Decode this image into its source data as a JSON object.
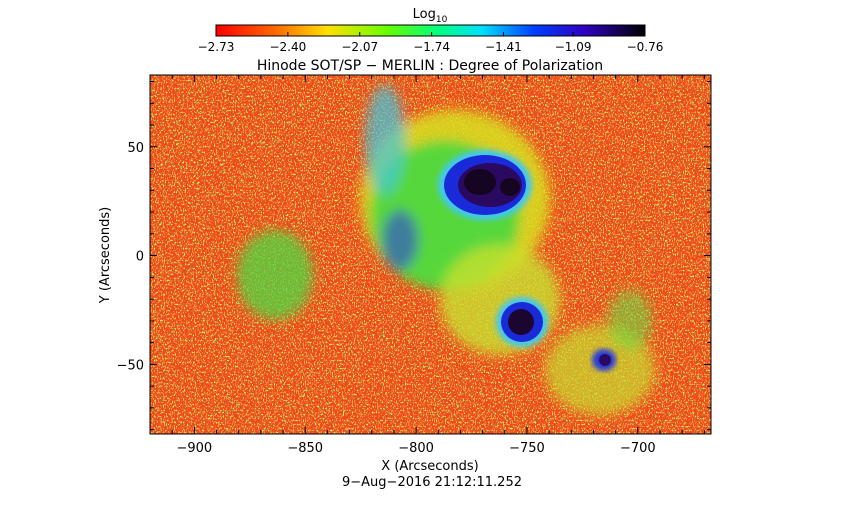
{
  "colorbar": {
    "label_main": "Log",
    "label_sub": "10",
    "ticks": [
      "−2.73",
      "−2.40",
      "−2.07",
      "−1.74",
      "−1.41",
      "−1.09",
      "−0.76"
    ],
    "values": [
      -2.73,
      -2.4,
      -2.07,
      -1.74,
      -1.41,
      -1.09,
      -0.76
    ]
  },
  "title": "Hinode SOT/SP − MERLIN : Degree of Polarization",
  "x_axis": {
    "label": "X (Arcseconds)",
    "ticks": [
      "−900",
      "−850",
      "−800",
      "−750",
      "−700"
    ],
    "values": [
      -900,
      -850,
      -800,
      -750,
      -700
    ],
    "range": [
      -920,
      -667
    ]
  },
  "y_axis": {
    "label": "Y (Arcseconds)",
    "ticks": [
      "50",
      "0",
      "−50"
    ],
    "values": [
      50,
      0,
      -50
    ],
    "range": [
      -82,
      83
    ]
  },
  "timestamp": "9−Aug−2016 21:12:11.252",
  "colors": {
    "background_field": "#f04818",
    "plage": "#3cdc3c",
    "penumbra": "#1020c8",
    "umbra": "#1a0836"
  }
}
